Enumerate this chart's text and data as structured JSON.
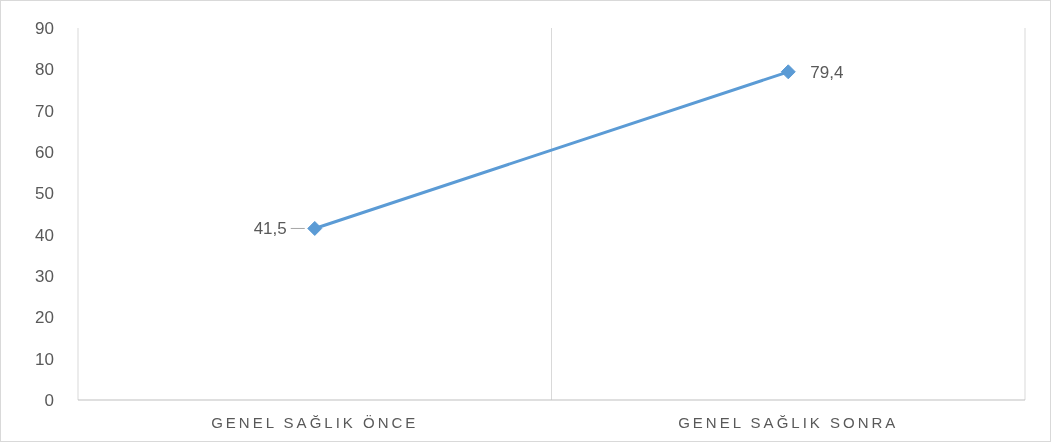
{
  "chart_data": {
    "type": "line",
    "categories": [
      "GENEL SAĞLIK ÖNCE",
      "GENEL SAĞLIK SONRA"
    ],
    "series": [
      {
        "color": "#5b9bd5",
        "values": [
          41.5,
          79.4
        ],
        "value_labels": [
          "41,5",
          "79,4"
        ]
      }
    ],
    "ylim": [
      0,
      90
    ],
    "yticks": [
      0,
      10,
      20,
      30,
      40,
      50,
      60,
      70,
      80,
      90
    ],
    "grid": "x",
    "marker": "diamond",
    "line_style": "solid"
  }
}
